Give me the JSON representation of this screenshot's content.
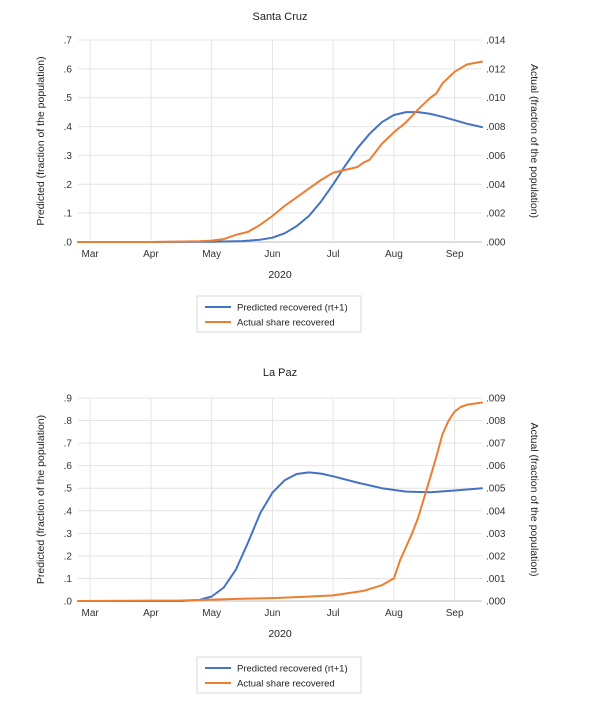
{
  "chart_data": [
    {
      "type": "line",
      "title": "Santa Cruz",
      "xlabel": "2020",
      "ylabel_left": "Predicted (fraction of the population)",
      "ylabel_right": "Actual (fraction of the population)",
      "x_ticks": [
        "Mar",
        "Apr",
        "May",
        "Jun",
        "Jul",
        "Aug",
        "Sep"
      ],
      "x_range_months": [
        2.8,
        9.45
      ],
      "y_left_ticks": [
        ".0",
        ".1",
        ".2",
        ".3",
        ".4",
        ".5",
        ".6",
        ".7"
      ],
      "y_left_range": [
        0,
        0.7
      ],
      "y_right_ticks": [
        ".000",
        ".002",
        ".004",
        ".006",
        ".008",
        ".010",
        ".012",
        ".014"
      ],
      "y_right_range": [
        0,
        0.014
      ],
      "grid": true,
      "legend_position": "bottom",
      "series": [
        {
          "name": "Predicted recovered (rt+1)",
          "axis": "left",
          "color": "#4472C4",
          "x": [
            2.8,
            4.0,
            5.0,
            5.5,
            5.8,
            6.0,
            6.2,
            6.4,
            6.6,
            6.8,
            7.0,
            7.2,
            7.4,
            7.6,
            7.8,
            8.0,
            8.2,
            8.4,
            8.6,
            8.8,
            9.0,
            9.2,
            9.45
          ],
          "values": [
            0.0,
            0.0,
            0.001,
            0.003,
            0.008,
            0.015,
            0.03,
            0.055,
            0.09,
            0.14,
            0.2,
            0.265,
            0.325,
            0.375,
            0.415,
            0.44,
            0.45,
            0.45,
            0.444,
            0.434,
            0.422,
            0.41,
            0.398
          ]
        },
        {
          "name": "Actual share recovered",
          "axis": "right",
          "color": "#ED7D31",
          "x": [
            2.8,
            4.0,
            4.8,
            5.0,
            5.2,
            5.4,
            5.6,
            5.8,
            6.0,
            6.2,
            6.4,
            6.6,
            6.8,
            7.0,
            7.2,
            7.4,
            7.5,
            7.6,
            7.8,
            8.0,
            8.2,
            8.4,
            8.6,
            8.7,
            8.8,
            9.0,
            9.2,
            9.45
          ],
          "values": [
            0.0,
            0.0,
            5e-05,
            0.0001,
            0.0002,
            0.0005,
            0.0007,
            0.0012,
            0.0018,
            0.0025,
            0.0031,
            0.0037,
            0.0043,
            0.0048,
            0.005,
            0.0052,
            0.0055,
            0.0057,
            0.0068,
            0.0076,
            0.0083,
            0.0092,
            0.01,
            0.0103,
            0.011,
            0.0118,
            0.0123,
            0.0125
          ]
        }
      ]
    },
    {
      "type": "line",
      "title": "La Paz",
      "xlabel": "2020",
      "ylabel_left": "Predicted (fraction of the population)",
      "ylabel_right": "Actual (fraction of the population)",
      "x_ticks": [
        "Mar",
        "Apr",
        "May",
        "Jun",
        "Jul",
        "Aug",
        "Sep"
      ],
      "x_range_months": [
        2.8,
        9.45
      ],
      "y_left_ticks": [
        ".0",
        ".1",
        ".2",
        ".3",
        ".4",
        ".5",
        ".6",
        ".7",
        ".8",
        ".9"
      ],
      "y_left_range": [
        0,
        0.9
      ],
      "y_right_ticks": [
        ".000",
        ".001",
        ".002",
        ".003",
        ".004",
        ".005",
        ".006",
        ".007",
        ".008",
        ".009"
      ],
      "y_right_range": [
        0,
        0.009
      ],
      "grid": true,
      "legend_position": "bottom",
      "series": [
        {
          "name": "Predicted recovered (rt+1)",
          "axis": "left",
          "color": "#4472C4",
          "x": [
            2.8,
            4.5,
            4.8,
            5.0,
            5.2,
            5.4,
            5.6,
            5.8,
            6.0,
            6.2,
            6.4,
            6.6,
            6.8,
            7.0,
            7.4,
            7.8,
            8.2,
            8.6,
            9.0,
            9.45
          ],
          "values": [
            0.0,
            0.0,
            0.005,
            0.02,
            0.06,
            0.14,
            0.26,
            0.39,
            0.48,
            0.535,
            0.563,
            0.57,
            0.565,
            0.553,
            0.525,
            0.5,
            0.485,
            0.482,
            0.49,
            0.5
          ]
        },
        {
          "name": "Actual share recovered",
          "axis": "right",
          "color": "#ED7D31",
          "x": [
            2.8,
            4.5,
            5.0,
            5.5,
            6.0,
            6.5,
            7.0,
            7.5,
            7.8,
            8.0,
            8.1,
            8.2,
            8.3,
            8.4,
            8.5,
            8.6,
            8.7,
            8.8,
            8.9,
            9.0,
            9.1,
            9.2,
            9.45
          ],
          "values": [
            0.0,
            2e-05,
            6e-05,
            0.0001,
            0.00013,
            0.00018,
            0.00025,
            0.00045,
            0.0007,
            0.001,
            0.0018,
            0.0024,
            0.003,
            0.0037,
            0.0046,
            0.0055,
            0.0064,
            0.0074,
            0.008,
            0.0084,
            0.0086,
            0.0087,
            0.0088
          ]
        }
      ]
    }
  ]
}
